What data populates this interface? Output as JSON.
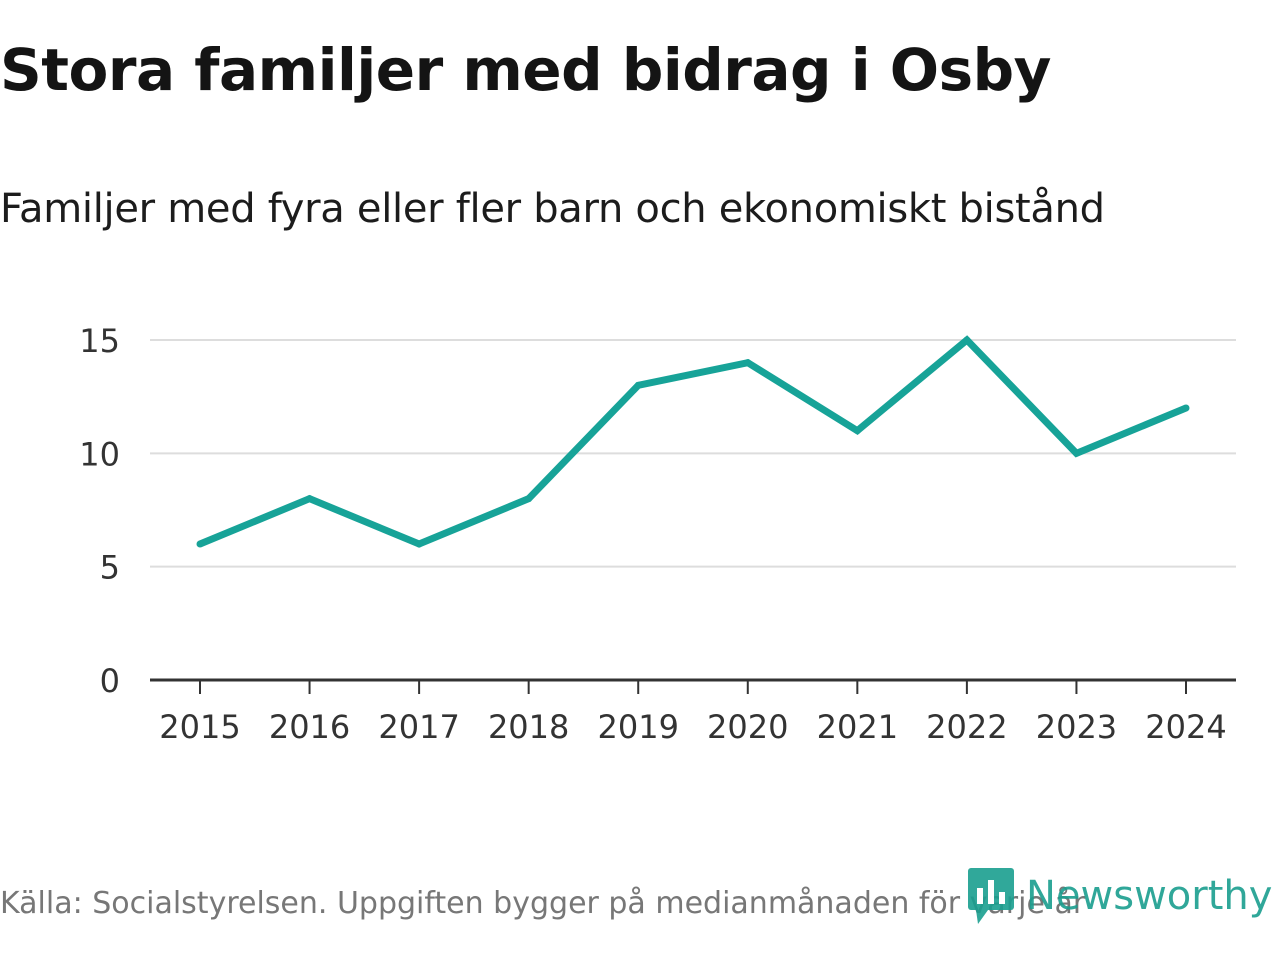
{
  "title": "Stora familjer med bidrag i Osby",
  "subtitle": "Familjer med fyra eller fler barn och ekonomiskt bistånd",
  "source": "Källa: Socialstyrelsen. Uppgiften bygger på medianmånaden för varje år",
  "brand": {
    "name": "Newsworthy",
    "color": "#1a9e8f",
    "icon": "newsworthy-logo-icon"
  },
  "colors": {
    "line": "#17a398",
    "grid": "#dddddd",
    "axis": "#333333"
  },
  "chart_data": {
    "type": "line",
    "title": "Stora familjer med bidrag i Osby",
    "subtitle": "Familjer med fyra eller fler barn och ekonomiskt bistånd",
    "xlabel": "",
    "ylabel": "",
    "categories": [
      "2015",
      "2016",
      "2017",
      "2018",
      "2019",
      "2020",
      "2021",
      "2022",
      "2023",
      "2024"
    ],
    "series": [
      {
        "name": "Familjer med fyra eller fler barn och ekonomiskt bistånd",
        "values": [
          6,
          8,
          6,
          8,
          13,
          14,
          11,
          15,
          10,
          12
        ]
      }
    ],
    "ylim": [
      0,
      15
    ],
    "yticks": [
      0,
      5,
      10,
      15
    ],
    "grid": true,
    "legend": "none"
  }
}
